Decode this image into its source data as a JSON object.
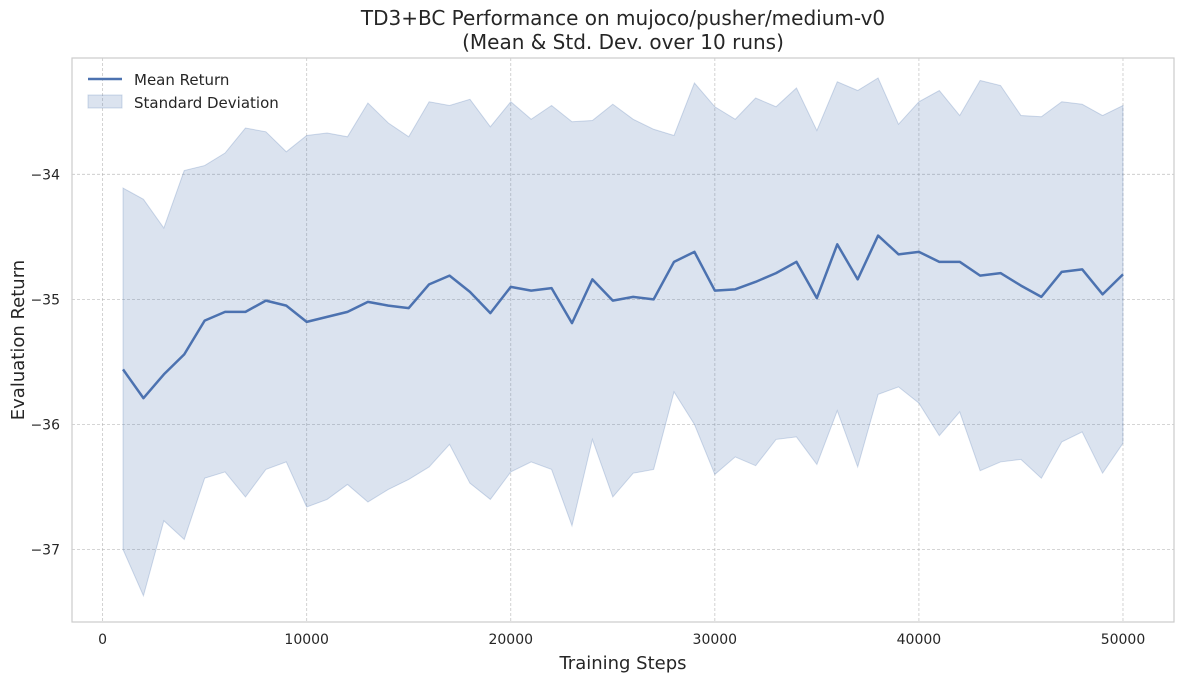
{
  "chart_data": {
    "type": "line",
    "title": "TD3+BC Performance on mujoco/pusher/medium-v0",
    "subtitle": "(Mean & Std. Dev. over 10 runs)",
    "xlabel": "Training Steps",
    "ylabel": "Evaluation Return",
    "xlim": [
      -1500,
      52500
    ],
    "ylim": [
      -37.58,
      -33.07
    ],
    "xticks": [
      0,
      10000,
      20000,
      30000,
      40000,
      50000
    ],
    "yticks": [
      -37,
      -36,
      -35,
      -34
    ],
    "xtick_labels": [
      "0",
      "10000",
      "20000",
      "30000",
      "40000",
      "50000"
    ],
    "ytick_labels": [
      "−37",
      "−36",
      "−35",
      "−34"
    ],
    "grid": true,
    "legend_position": "top-left",
    "colors": {
      "line": "#4c72b0",
      "band": "#4c72b0",
      "frame": "#cccccc"
    },
    "x": [
      1000,
      2000,
      3000,
      4000,
      5000,
      6000,
      7000,
      8000,
      9000,
      10000,
      11000,
      12000,
      13000,
      14000,
      15000,
      16000,
      17000,
      18000,
      19000,
      20000,
      21000,
      22000,
      23000,
      24000,
      25000,
      26000,
      27000,
      28000,
      29000,
      30000,
      31000,
      32000,
      33000,
      34000,
      35000,
      36000,
      37000,
      38000,
      39000,
      40000,
      41000,
      42000,
      43000,
      44000,
      45000,
      46000,
      47000,
      48000,
      49000,
      50000
    ],
    "series": [
      {
        "name": "Mean Return",
        "kind": "line",
        "values": [
          -35.56,
          -35.79,
          -35.6,
          -35.44,
          -35.17,
          -35.1,
          -35.1,
          -35.01,
          -35.05,
          -35.18,
          -35.14,
          -35.1,
          -35.02,
          -35.05,
          -35.07,
          -34.88,
          -34.81,
          -34.94,
          -35.11,
          -34.9,
          -34.93,
          -34.91,
          -35.19,
          -34.84,
          -35.01,
          -34.98,
          -35.0,
          -34.7,
          -34.62,
          -34.93,
          -34.92,
          -34.86,
          -34.79,
          -34.7,
          -34.99,
          -34.56,
          -34.84,
          -34.49,
          -34.64,
          -34.62,
          -34.7,
          -34.7,
          -34.81,
          -34.79,
          -34.89,
          -34.98,
          -34.78,
          -34.76,
          -34.96,
          -34.8
        ]
      },
      {
        "name": "Standard Deviation",
        "kind": "band",
        "upper": [
          -34.11,
          -34.2,
          -34.43,
          -33.97,
          -33.93,
          -33.83,
          -33.63,
          -33.66,
          -33.82,
          -33.69,
          -33.67,
          -33.7,
          -33.43,
          -33.59,
          -33.7,
          -33.42,
          -33.45,
          -33.4,
          -33.62,
          -33.42,
          -33.56,
          -33.45,
          -33.58,
          -33.57,
          -33.44,
          -33.56,
          -33.64,
          -33.69,
          -33.27,
          -33.46,
          -33.56,
          -33.39,
          -33.46,
          -33.31,
          -33.65,
          -33.26,
          -33.33,
          -33.23,
          -33.6,
          -33.42,
          -33.33,
          -33.53,
          -33.25,
          -33.29,
          -33.53,
          -33.54,
          -33.42,
          -33.44,
          -33.53,
          -33.45
        ],
        "lower": [
          -37.0,
          -37.37,
          -36.77,
          -36.92,
          -36.43,
          -36.38,
          -36.58,
          -36.36,
          -36.3,
          -36.66,
          -36.6,
          -36.48,
          -36.62,
          -36.52,
          -36.44,
          -36.34,
          -36.16,
          -36.47,
          -36.6,
          -36.38,
          -36.3,
          -36.36,
          -36.81,
          -36.12,
          -36.58,
          -36.39,
          -36.36,
          -35.74,
          -36.0,
          -36.4,
          -36.26,
          -36.33,
          -36.12,
          -36.1,
          -36.32,
          -35.89,
          -36.34,
          -35.76,
          -35.7,
          -35.83,
          -36.09,
          -35.9,
          -36.37,
          -36.3,
          -36.28,
          -36.43,
          -36.14,
          -36.06,
          -36.39,
          -36.15
        ]
      }
    ]
  }
}
